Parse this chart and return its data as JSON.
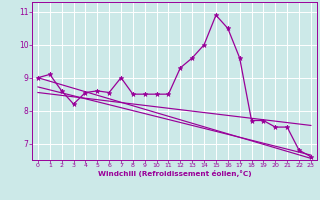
{
  "x": [
    0,
    1,
    2,
    3,
    4,
    5,
    6,
    7,
    8,
    9,
    10,
    11,
    12,
    13,
    14,
    15,
    16,
    17,
    18,
    19,
    20,
    21,
    22,
    23
  ],
  "windchill": [
    9.0,
    9.1,
    8.6,
    8.2,
    8.55,
    8.6,
    8.55,
    9.0,
    8.5,
    8.5,
    8.5,
    8.5,
    9.3,
    9.6,
    10.0,
    10.9,
    10.5,
    9.6,
    7.7,
    7.7,
    7.5,
    7.5,
    6.8,
    6.6
  ],
  "line1_x": [
    0,
    23
  ],
  "line1_y": [
    9.0,
    6.55
  ],
  "line2_x": [
    0,
    23
  ],
  "line2_y": [
    8.72,
    6.65
  ],
  "line3_x": [
    0,
    23
  ],
  "line3_y": [
    8.55,
    7.55
  ],
  "curve_color": "#990099",
  "bg_color": "#cce9e8",
  "grid_color": "#ffffff",
  "xlabel": "Windchill (Refroidissement éolien,°C)",
  "ylim": [
    6.5,
    11.3
  ],
  "xlim": [
    -0.5,
    23.5
  ],
  "yticks": [
    7,
    8,
    9,
    10,
    11
  ],
  "xticks": [
    0,
    1,
    2,
    3,
    4,
    5,
    6,
    7,
    8,
    9,
    10,
    11,
    12,
    13,
    14,
    15,
    16,
    17,
    18,
    19,
    20,
    21,
    22,
    23
  ]
}
